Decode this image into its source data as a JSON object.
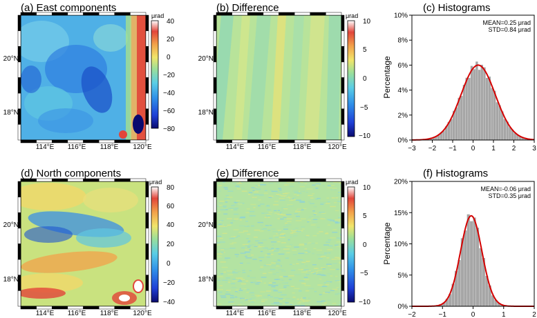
{
  "chart_data": [
    {
      "type": "heatmap",
      "title": "(a) East components",
      "colorbar_unit": "μrad",
      "colorbar_ticks": [
        "40",
        "20",
        "0",
        "−20",
        "−40",
        "−60",
        "−80"
      ],
      "colorbar_range": [
        -80,
        40
      ],
      "x_ticks": [
        "114°E",
        "116°E",
        "118°E",
        "120°E"
      ],
      "y_ticks": [
        "20°N",
        "18°N"
      ],
      "colormap": "rainbow-blue-to-red",
      "field_character": "mostly blue/cyan background (−40 to −10), red/orange band along the eastern edge, dark blue patch near the south-east corner"
    },
    {
      "type": "heatmap",
      "title": "(b) Difference",
      "colorbar_unit": "μrad",
      "colorbar_ticks": [
        "10",
        "5",
        "0",
        "−5",
        "−10"
      ],
      "colorbar_range": [
        -10,
        10
      ],
      "x_ticks": [
        "114°E",
        "116°E",
        "118°E",
        "120°E"
      ],
      "y_ticks": [
        "20°N",
        "18°N"
      ],
      "field_character": "green/yellow values near 0 with diagonal along-track stripes"
    },
    {
      "type": "bar",
      "title": "(c) Histograms",
      "ylabel": "Percentage",
      "xlim": [
        -3,
        3
      ],
      "ylim": [
        0,
        10
      ],
      "x_ticks": [
        "−3",
        "−2",
        "−1",
        "0",
        "1",
        "2",
        "3"
      ],
      "y_ticks": [
        "0%",
        "2%",
        "4%",
        "6%",
        "8%",
        "10%"
      ],
      "stats": [
        "MEAN=0.25 μrad",
        "STD=0.84 μrad"
      ],
      "mean": 0.25,
      "std": 0.84,
      "bin_width": 0.125,
      "peak_percent": 6.0
    },
    {
      "type": "heatmap",
      "title": "(d) North components",
      "colorbar_unit": "μrad",
      "colorbar_ticks": [
        "80",
        "60",
        "40",
        "20",
        "0",
        "−20",
        "−40"
      ],
      "colorbar_range": [
        -40,
        80
      ],
      "x_ticks": [
        "114°E",
        "116°E",
        "118°E",
        "120°E"
      ],
      "y_ticks": [
        "20°N",
        "18°N"
      ],
      "field_character": "yellow/green northern half, blue band across the middle, orange/red band in the south, red/white spots in the south-east"
    },
    {
      "type": "heatmap",
      "title": "(e) Difference",
      "colorbar_unit": "μrad",
      "colorbar_ticks": [
        "10",
        "5",
        "0",
        "−5",
        "−10"
      ],
      "colorbar_range": [
        -10,
        10
      ],
      "x_ticks": [
        "114°E",
        "116°E",
        "118°E",
        "120°E"
      ],
      "y_ticks": [
        "20°N",
        "18°N"
      ],
      "field_character": "fine-grained green/cyan noise centred near 0"
    },
    {
      "type": "bar",
      "title": "(f) Histograms",
      "ylabel": "Percentage",
      "xlim": [
        -2,
        2
      ],
      "ylim": [
        0,
        20
      ],
      "x_ticks": [
        "−2",
        "−1",
        "0",
        "1",
        "2"
      ],
      "y_ticks": [
        "0%",
        "5%",
        "10%",
        "15%",
        "20%"
      ],
      "stats": [
        "MEAN=-0.06 μrad",
        "STD=0.35 μrad"
      ],
      "mean": -0.06,
      "std": 0.35,
      "bin_width": 0.1,
      "peak_percent": 14.5
    }
  ],
  "colors": {
    "histogram_bars": "#a6a6a6",
    "fit_curve": "#d40000",
    "frame": "#000000"
  }
}
